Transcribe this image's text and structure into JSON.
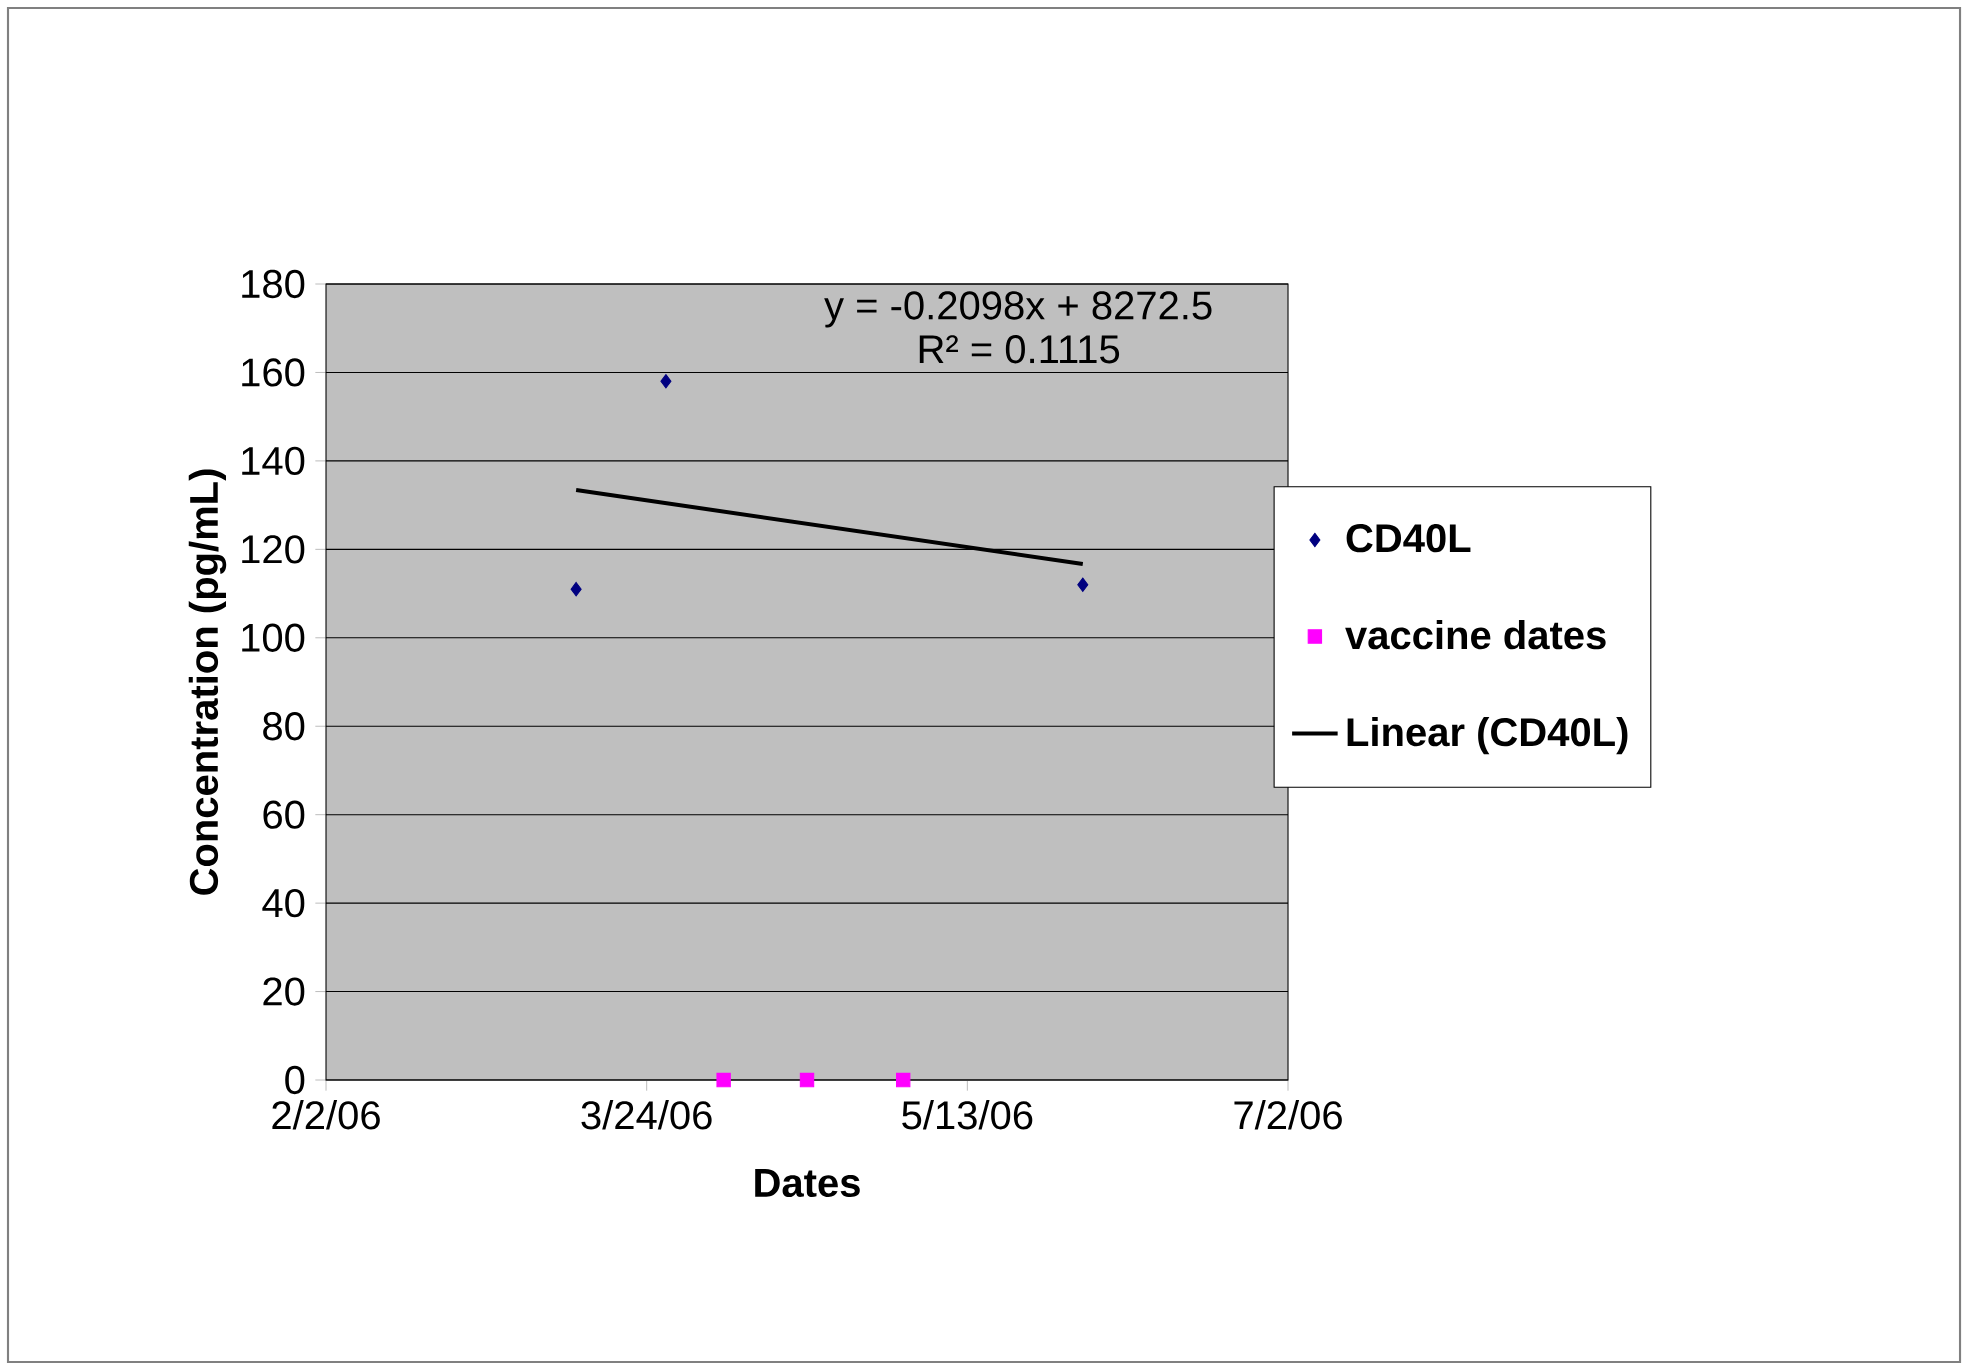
{
  "chart_data": {
    "type": "scatter",
    "xlabel": "Dates",
    "ylabel": "Concentration (pg/mL)",
    "xlim": [
      "2006-02-02",
      "2006-07-02"
    ],
    "xticks": [
      {
        "value": "2006-02-02",
        "label": "2/2/06"
      },
      {
        "value": "2006-03-24",
        "label": "3/24/06"
      },
      {
        "value": "2006-05-13",
        "label": "5/13/06"
      },
      {
        "value": "2006-07-02",
        "label": "7/2/06"
      }
    ],
    "ylim": [
      0,
      180
    ],
    "yticks": [
      0,
      20,
      40,
      60,
      80,
      100,
      120,
      140,
      160,
      180
    ],
    "grid": "y",
    "legend": "right",
    "annotations": [
      "y = -0.2098x + 8272.5",
      "R² = 0.1115"
    ],
    "series": [
      {
        "name": "CD40L",
        "marker": "diamond",
        "color": "#000080",
        "x": [
          "2006-03-13",
          "2006-03-27",
          "2006-05-31"
        ],
        "values": [
          111,
          158,
          112
        ]
      },
      {
        "name": "vaccine dates",
        "marker": "square",
        "color": "#ff00ff",
        "x": [
          "2006-04-05",
          "2006-04-18",
          "2006-05-03"
        ],
        "values": [
          0,
          0,
          0
        ]
      },
      {
        "name": "Linear (CD40L)",
        "type": "line",
        "marker": "none",
        "color": "#000000",
        "x": [
          "2006-03-13",
          "2006-05-31"
        ],
        "values": [
          133.4,
          116.7
        ]
      }
    ]
  }
}
